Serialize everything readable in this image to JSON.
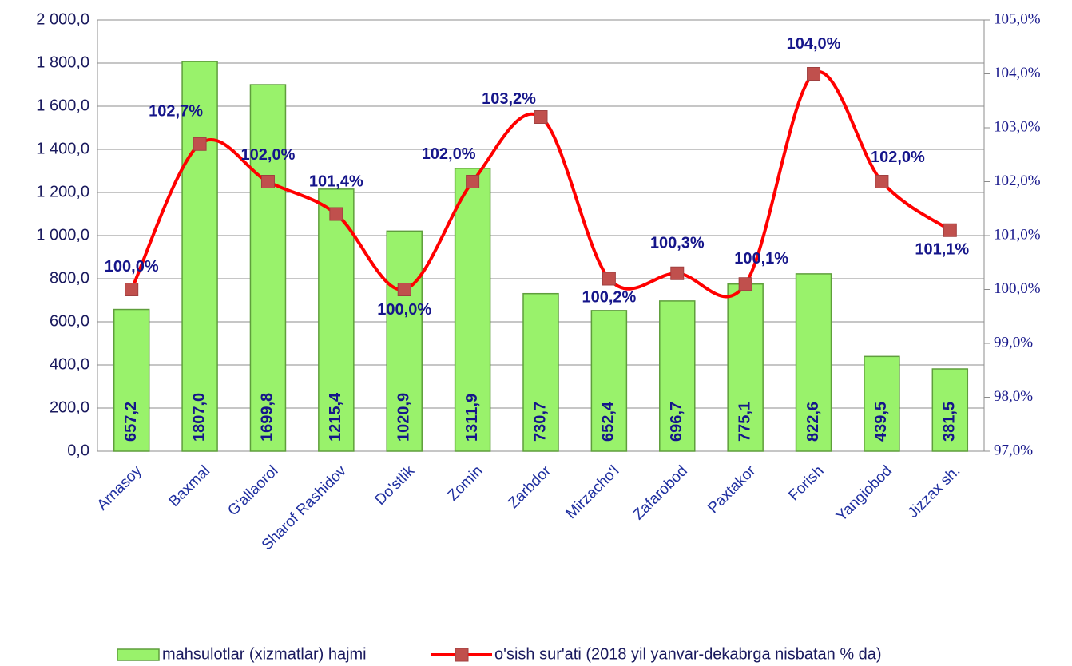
{
  "chart_data": {
    "type": "bar-line",
    "categories": [
      "Arnasoy",
      "Baxmal",
      "G'allaorol",
      "Sharof Rashidov",
      "Do'stlik",
      "Zomin",
      "Zarbdor",
      "Mirzacho'l",
      "Zafarobod",
      "Paxtakor",
      "Forish",
      "Yangiobod",
      "Jizzax sh."
    ],
    "series": [
      {
        "name": "mahsulotlar (xizmatlar) hajmi",
        "type": "bar",
        "color": "#99f26b",
        "values": [
          657.2,
          1807.0,
          1699.8,
          1215.4,
          1020.9,
          1311.9,
          730.7,
          652.4,
          696.7,
          775.1,
          822.6,
          439.5,
          381.5
        ],
        "value_labels": [
          "657,2",
          "1807,0",
          "1699,8",
          "1215,4",
          "1020,9",
          "1311,9",
          "730,7",
          "652,4",
          "696,7",
          "775,1",
          "822,6",
          "439,5",
          "381,5"
        ]
      },
      {
        "name": "o'sish sur'ati (2018 yil yanvar-dekabrga nisbatan % da)",
        "type": "line",
        "axis": "y2",
        "color": "#ff0000",
        "marker_color": "#c0504d",
        "values": [
          100.0,
          102.7,
          102.0,
          101.4,
          100.0,
          102.0,
          103.2,
          100.2,
          100.3,
          100.1,
          104.0,
          102.0,
          101.1
        ],
        "value_labels": [
          "100,0%",
          "102,7%",
          "102,0%",
          "101,4%",
          "100,0%",
          "102,0%",
          "103,2%",
          "100,2%",
          "100,3%",
          "100,1%",
          "104,0%",
          "102,0%",
          "101,1%"
        ]
      }
    ],
    "ylim": [
      0,
      2000
    ],
    "yticks": [
      {
        "value": 0,
        "label": "0,0"
      },
      {
        "value": 200,
        "label": "200,0"
      },
      {
        "value": 400,
        "label": "400,0"
      },
      {
        "value": 600,
        "label": "600,0"
      },
      {
        "value": 800,
        "label": "800,0"
      },
      {
        "value": 1000,
        "label": "1 000,0"
      },
      {
        "value": 1200,
        "label": "1 200,0"
      },
      {
        "value": 1400,
        "label": "1 400,0"
      },
      {
        "value": 1600,
        "label": "1 600,0"
      },
      {
        "value": 1800,
        "label": "1 800,0"
      },
      {
        "value": 2000,
        "label": "2 000,0"
      }
    ],
    "y2lim": [
      97,
      105
    ],
    "y2ticks": [
      {
        "value": 97,
        "label": "97,0%"
      },
      {
        "value": 98,
        "label": "98,0%"
      },
      {
        "value": 99,
        "label": "99,0%"
      },
      {
        "value": 100,
        "label": "100,0%"
      },
      {
        "value": 101,
        "label": "101,0%"
      },
      {
        "value": 102,
        "label": "102,0%"
      },
      {
        "value": 103,
        "label": "103,0%"
      },
      {
        "value": 104,
        "label": "104,0%"
      },
      {
        "value": 105,
        "label": "105,0%"
      }
    ],
    "grid": true,
    "legend": "bottom"
  }
}
